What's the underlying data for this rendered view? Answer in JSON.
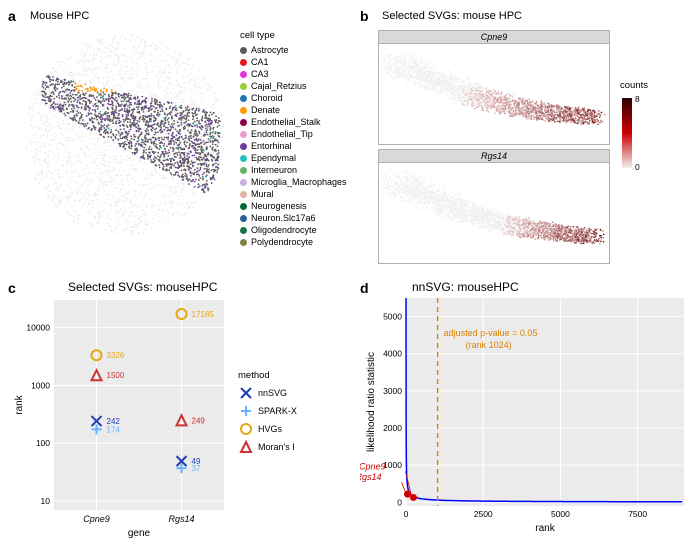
{
  "panel_a": {
    "label": "a",
    "title": "Mouse HPC",
    "circle_fill": "#e6e6e6",
    "legend_title": "cell type",
    "cell_types": [
      {
        "name": "Astrocyte",
        "color": "#5b5b5b"
      },
      {
        "name": "CA1",
        "color": "#e41a1c"
      },
      {
        "name": "CA3",
        "color": "#e733d9"
      },
      {
        "name": "Cajal_Retzius",
        "color": "#9acd32"
      },
      {
        "name": "Choroid",
        "color": "#1f78b4"
      },
      {
        "name": "Denate",
        "color": "#ff9900"
      },
      {
        "name": "Endothelial_Stalk",
        "color": "#8b0046"
      },
      {
        "name": "Endothelial_Tip",
        "color": "#e8a0c8"
      },
      {
        "name": "Entorhinal",
        "color": "#6a3d9a"
      },
      {
        "name": "Ependymal",
        "color": "#20c0c0"
      },
      {
        "name": "Interneuron",
        "color": "#66b266"
      },
      {
        "name": "Microglia_Macrophages",
        "color": "#c9b0e0"
      },
      {
        "name": "Mural",
        "color": "#e0b0a0"
      },
      {
        "name": "Neurogenesis",
        "color": "#006837"
      },
      {
        "name": "Neuron.Slc17a6",
        "color": "#2a6099"
      },
      {
        "name": "Oligodendrocyte",
        "color": "#177245"
      },
      {
        "name": "Polydendrocyte",
        "color": "#808040"
      }
    ]
  },
  "panel_b": {
    "label": "b",
    "title": "Selected SVGs: mouse HPC",
    "genes": [
      "Cpne9",
      "Rgs14"
    ],
    "counts_title": "counts",
    "gradient_low": "#f0f0f0",
    "gradient_high": "#cc0000",
    "gradient_top": "#2d0000",
    "counts_max": 8,
    "counts_min": 0
  },
  "panel_c": {
    "label": "c",
    "title": "Selected SVGs: mouseHPC",
    "xlabel": "gene",
    "ylabel": "rank",
    "xticks": [
      "Cpne9",
      "Rgs14"
    ],
    "yticks": [
      10,
      100,
      1000,
      10000
    ],
    "ylim": [
      7,
      30000
    ],
    "background": "#ebebeb",
    "grid_color": "#ffffff",
    "legend_title": "method",
    "methods": [
      {
        "name": "nnSVG",
        "color": "#1f3fb3",
        "marker": "x"
      },
      {
        "name": "SPARK-X",
        "color": "#66b3ff",
        "marker": "plus"
      },
      {
        "name": "HVGs",
        "color": "#e6a817",
        "marker": "circle"
      },
      {
        "name": "Moran's I",
        "color": "#cc3333",
        "marker": "triangle"
      }
    ],
    "points": {
      "Cpne9": {
        "nnSVG": 242,
        "SPARK-X": 174,
        "HVGs": 3326,
        "Moran's I": 1500
      },
      "Rgs14": {
        "nnSVG": 49,
        "SPARK-X": 37,
        "HVGs": 17185,
        "Moran's I": 249
      }
    }
  },
  "panel_d": {
    "label": "d",
    "title": "nnSVG: mouseHPC",
    "xlabel": "rank",
    "ylabel": "likelihood ratio statistic",
    "xticks": [
      0,
      2500,
      5000,
      7500
    ],
    "yticks": [
      0,
      1000,
      2000,
      3000,
      4000,
      5000
    ],
    "xlim": [
      0,
      9000
    ],
    "ylim": [
      -100,
      5500
    ],
    "background": "#ebebeb",
    "grid_color": "#ffffff",
    "line_color": "#0000ff",
    "vline_color": "#e08000",
    "vline_rank": 1024,
    "vline_label1": "adjusted p-value = 0.05",
    "vline_label2": "(rank 1024)",
    "highlight_color": "#d00000",
    "highlights": [
      {
        "gene": "Rgs14",
        "rank": 49,
        "lr": 220
      },
      {
        "gene": "Cpne9",
        "rank": 242,
        "lr": 130
      }
    ]
  }
}
